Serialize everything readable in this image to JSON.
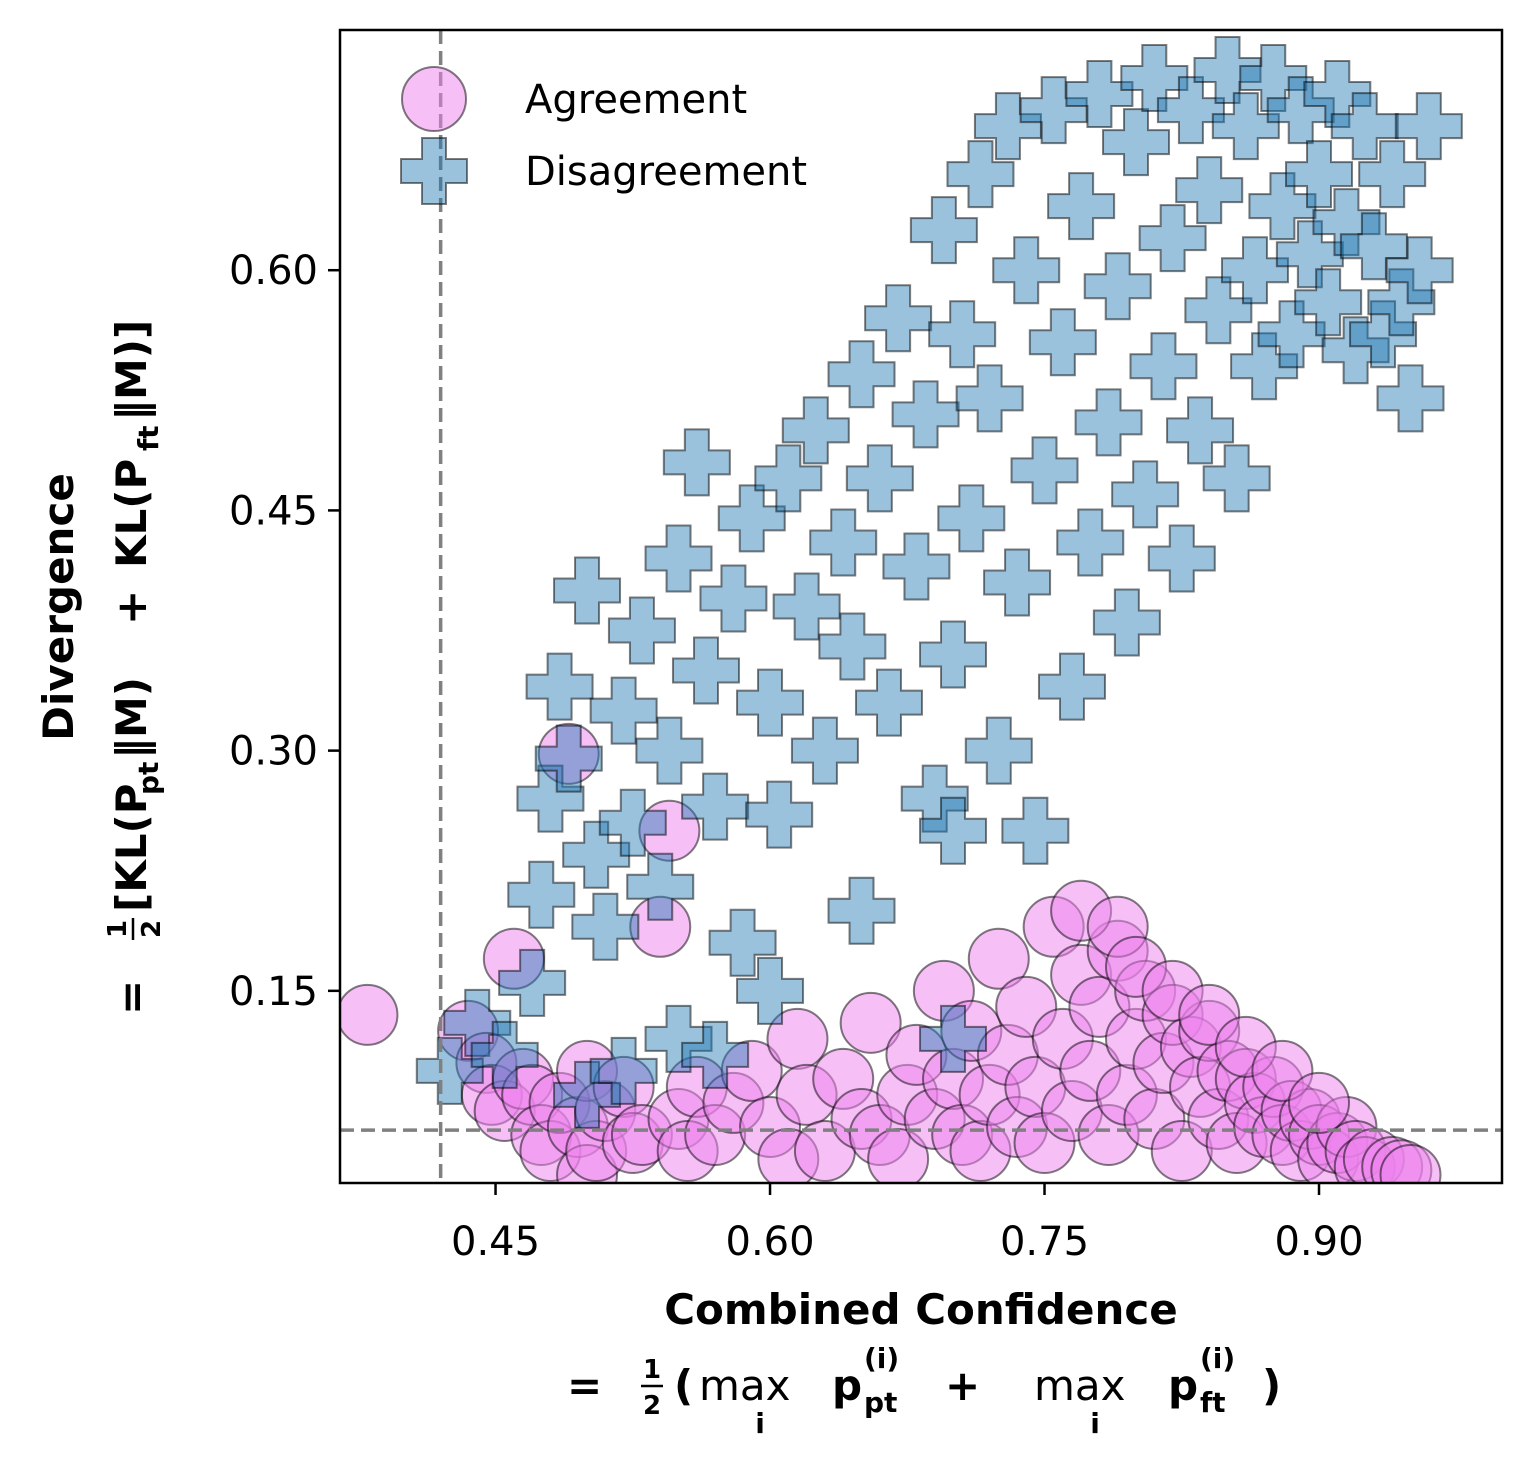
{
  "chart_data": {
    "type": "scatter",
    "xlim": [
      0.365,
      1.0
    ],
    "ylim": [
      0.03,
      0.75
    ],
    "xticks": [
      "0.45",
      "0.60",
      "0.75",
      "0.90"
    ],
    "xtick_values": [
      0.45,
      0.6,
      0.75,
      0.9
    ],
    "yticks": [
      "0.15",
      "0.30",
      "0.45",
      "0.60"
    ],
    "ytick_values": [
      0.15,
      0.3,
      0.45,
      0.6
    ],
    "xlabel": {
      "line1": "Combined Confidence",
      "line2_prefix": "=",
      "frac": [
        "1",
        "2"
      ],
      "open_paren": "(",
      "max1": "max",
      "max1_sub": "i",
      "p1": "p",
      "p1_sup": "(i)",
      "p1_sub": "pt",
      "plus": "+",
      "max2": "max",
      "max2_sub": "i",
      "p2": "p",
      "p2_sup": "(i)",
      "p2_sub": "ft",
      "close_paren": ")"
    },
    "ylabel": {
      "line1": "Divergence",
      "line2_prefix": "=",
      "frac": [
        "1",
        "2"
      ],
      "part1": "[KL(P",
      "sub1": "pt",
      "part2": "‖M)",
      "plus": "+",
      "part3": "KL(P",
      "sub2": "ft",
      "part4": "‖M)]"
    },
    "reference_lines": [
      {
        "orientation": "vertical",
        "x": 0.42,
        "style": "dashed",
        "color": "#808080"
      },
      {
        "orientation": "horizontal",
        "y": 0.063,
        "style": "dashed",
        "color": "#808080"
      }
    ],
    "legend": {
      "location": "upper left"
    },
    "series": [
      {
        "name": "Agreement",
        "marker": "circle",
        "color": "#ee82ee",
        "alpha": 0.5,
        "points": [
          [
            0.38,
            0.135
          ],
          [
            0.435,
            0.125
          ],
          [
            0.445,
            0.105
          ],
          [
            0.448,
            0.085
          ],
          [
            0.455,
            0.075
          ],
          [
            0.46,
            0.17
          ],
          [
            0.465,
            0.095
          ],
          [
            0.47,
            0.085
          ],
          [
            0.475,
            0.06
          ],
          [
            0.48,
            0.05
          ],
          [
            0.485,
            0.08
          ],
          [
            0.49,
            0.298
          ],
          [
            0.495,
            0.065
          ],
          [
            0.5,
            0.035
          ],
          [
            0.5,
            0.1
          ],
          [
            0.505,
            0.05
          ],
          [
            0.51,
            0.075
          ],
          [
            0.52,
            0.09
          ],
          [
            0.525,
            0.055
          ],
          [
            0.53,
            0.06
          ],
          [
            0.54,
            0.19
          ],
          [
            0.545,
            0.25
          ],
          [
            0.55,
            0.07
          ],
          [
            0.555,
            0.05
          ],
          [
            0.56,
            0.09
          ],
          [
            0.57,
            0.06
          ],
          [
            0.58,
            0.08
          ],
          [
            0.59,
            0.1
          ],
          [
            0.6,
            0.065
          ],
          [
            0.61,
            0.045
          ],
          [
            0.615,
            0.12
          ],
          [
            0.62,
            0.085
          ],
          [
            0.63,
            0.05
          ],
          [
            0.64,
            0.095
          ],
          [
            0.65,
            0.07
          ],
          [
            0.655,
            0.13
          ],
          [
            0.66,
            0.06
          ],
          [
            0.67,
            0.045
          ],
          [
            0.675,
            0.085
          ],
          [
            0.68,
            0.11
          ],
          [
            0.69,
            0.07
          ],
          [
            0.695,
            0.15
          ],
          [
            0.7,
            0.095
          ],
          [
            0.705,
            0.06
          ],
          [
            0.71,
            0.125
          ],
          [
            0.715,
            0.05
          ],
          [
            0.72,
            0.085
          ],
          [
            0.725,
            0.17
          ],
          [
            0.73,
            0.11
          ],
          [
            0.735,
            0.065
          ],
          [
            0.74,
            0.14
          ],
          [
            0.745,
            0.09
          ],
          [
            0.75,
            0.055
          ],
          [
            0.755,
            0.19
          ],
          [
            0.76,
            0.12
          ],
          [
            0.765,
            0.075
          ],
          [
            0.77,
            0.16
          ],
          [
            0.775,
            0.1
          ],
          [
            0.78,
            0.14
          ],
          [
            0.785,
            0.06
          ],
          [
            0.79,
            0.175
          ],
          [
            0.795,
            0.085
          ],
          [
            0.8,
            0.12
          ],
          [
            0.805,
            0.15
          ],
          [
            0.81,
            0.07
          ],
          [
            0.815,
            0.105
          ],
          [
            0.82,
            0.135
          ],
          [
            0.825,
            0.05
          ],
          [
            0.83,
            0.115
          ],
          [
            0.835,
            0.09
          ],
          [
            0.84,
            0.125
          ],
          [
            0.845,
            0.07
          ],
          [
            0.85,
            0.1
          ],
          [
            0.855,
            0.055
          ],
          [
            0.86,
            0.095
          ],
          [
            0.865,
            0.08
          ],
          [
            0.87,
            0.065
          ],
          [
            0.875,
            0.09
          ],
          [
            0.88,
            0.06
          ],
          [
            0.885,
            0.075
          ],
          [
            0.89,
            0.05
          ],
          [
            0.895,
            0.07
          ],
          [
            0.9,
            0.06
          ],
          [
            0.905,
            0.045
          ],
          [
            0.91,
            0.055
          ],
          [
            0.915,
            0.065
          ],
          [
            0.92,
            0.05
          ],
          [
            0.925,
            0.04
          ],
          [
            0.93,
            0.045
          ],
          [
            0.94,
            0.04
          ],
          [
            0.945,
            0.038
          ],
          [
            0.95,
            0.035
          ],
          [
            0.77,
            0.2
          ],
          [
            0.79,
            0.19
          ],
          [
            0.8,
            0.165
          ],
          [
            0.82,
            0.15
          ],
          [
            0.84,
            0.135
          ],
          [
            0.86,
            0.115
          ],
          [
            0.88,
            0.1
          ],
          [
            0.9,
            0.08
          ]
        ]
      },
      {
        "name": "Disagreement",
        "marker": "plus",
        "color": "#1f77b4",
        "alpha": 0.45,
        "points": [
          [
            0.425,
            0.1
          ],
          [
            0.44,
            0.13
          ],
          [
            0.455,
            0.11
          ],
          [
            0.47,
            0.155
          ],
          [
            0.475,
            0.21
          ],
          [
            0.48,
            0.27
          ],
          [
            0.485,
            0.34
          ],
          [
            0.49,
            0.295
          ],
          [
            0.5,
            0.4
          ],
          [
            0.505,
            0.235
          ],
          [
            0.51,
            0.19
          ],
          [
            0.52,
            0.325
          ],
          [
            0.525,
            0.255
          ],
          [
            0.53,
            0.375
          ],
          [
            0.54,
            0.215
          ],
          [
            0.545,
            0.3
          ],
          [
            0.55,
            0.42
          ],
          [
            0.56,
            0.48
          ],
          [
            0.565,
            0.35
          ],
          [
            0.57,
            0.265
          ],
          [
            0.58,
            0.395
          ],
          [
            0.585,
            0.18
          ],
          [
            0.59,
            0.445
          ],
          [
            0.6,
            0.33
          ],
          [
            0.605,
            0.26
          ],
          [
            0.61,
            0.47
          ],
          [
            0.62,
            0.39
          ],
          [
            0.625,
            0.5
          ],
          [
            0.63,
            0.3
          ],
          [
            0.64,
            0.43
          ],
          [
            0.645,
            0.365
          ],
          [
            0.65,
            0.535
          ],
          [
            0.66,
            0.47
          ],
          [
            0.665,
            0.33
          ],
          [
            0.67,
            0.57
          ],
          [
            0.68,
            0.415
          ],
          [
            0.685,
            0.51
          ],
          [
            0.69,
            0.27
          ],
          [
            0.695,
            0.625
          ],
          [
            0.7,
            0.36
          ],
          [
            0.7,
            0.12
          ],
          [
            0.705,
            0.56
          ],
          [
            0.71,
            0.445
          ],
          [
            0.715,
            0.66
          ],
          [
            0.72,
            0.52
          ],
          [
            0.725,
            0.3
          ],
          [
            0.73,
            0.69
          ],
          [
            0.735,
            0.405
          ],
          [
            0.74,
            0.6
          ],
          [
            0.745,
            0.25
          ],
          [
            0.75,
            0.475
          ],
          [
            0.755,
            0.7
          ],
          [
            0.76,
            0.555
          ],
          [
            0.765,
            0.34
          ],
          [
            0.77,
            0.64
          ],
          [
            0.775,
            0.43
          ],
          [
            0.78,
            0.71
          ],
          [
            0.785,
            0.505
          ],
          [
            0.79,
            0.59
          ],
          [
            0.795,
            0.38
          ],
          [
            0.8,
            0.68
          ],
          [
            0.805,
            0.46
          ],
          [
            0.81,
            0.72
          ],
          [
            0.815,
            0.54
          ],
          [
            0.82,
            0.62
          ],
          [
            0.825,
            0.42
          ],
          [
            0.83,
            0.7
          ],
          [
            0.835,
            0.5
          ],
          [
            0.84,
            0.65
          ],
          [
            0.845,
            0.575
          ],
          [
            0.85,
            0.725
          ],
          [
            0.855,
            0.47
          ],
          [
            0.86,
            0.69
          ],
          [
            0.865,
            0.6
          ],
          [
            0.87,
            0.54
          ],
          [
            0.875,
            0.72
          ],
          [
            0.88,
            0.64
          ],
          [
            0.885,
            0.56
          ],
          [
            0.89,
            0.7
          ],
          [
            0.895,
            0.61
          ],
          [
            0.9,
            0.66
          ],
          [
            0.905,
            0.58
          ],
          [
            0.91,
            0.71
          ],
          [
            0.915,
            0.63
          ],
          [
            0.92,
            0.55
          ],
          [
            0.925,
            0.69
          ],
          [
            0.93,
            0.615
          ],
          [
            0.935,
            0.56
          ],
          [
            0.94,
            0.66
          ],
          [
            0.945,
            0.58
          ],
          [
            0.96,
            0.69
          ],
          [
            0.955,
            0.6
          ],
          [
            0.95,
            0.52
          ],
          [
            0.7,
            0.25
          ],
          [
            0.65,
            0.2
          ],
          [
            0.6,
            0.15
          ],
          [
            0.55,
            0.12
          ],
          [
            0.5,
            0.085
          ],
          [
            0.52,
            0.1
          ],
          [
            0.57,
            0.11
          ]
        ]
      }
    ]
  }
}
